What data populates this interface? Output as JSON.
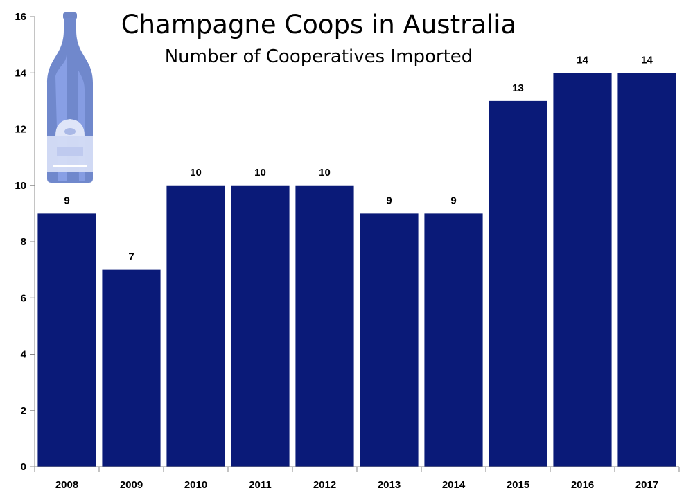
{
  "chart_data": {
    "type": "bar",
    "title": "Champagne Coops in Australia",
    "subtitle": "Number of Cooperatives Imported",
    "categories": [
      "2008",
      "2009",
      "2010",
      "2011",
      "2012",
      "2013",
      "2014",
      "2015",
      "2016",
      "2017"
    ],
    "values": [
      9,
      7,
      10,
      10,
      10,
      9,
      9,
      13,
      14,
      14
    ],
    "xlabel": "",
    "ylabel": "",
    "ylim": [
      0,
      16
    ],
    "yticks": [
      0,
      2,
      4,
      6,
      8,
      10,
      12,
      14,
      16
    ],
    "grid": false,
    "legend": "none",
    "data_labels": true,
    "bar_color": "#0a1a78",
    "decoration": "champagne-bottle-icon"
  }
}
